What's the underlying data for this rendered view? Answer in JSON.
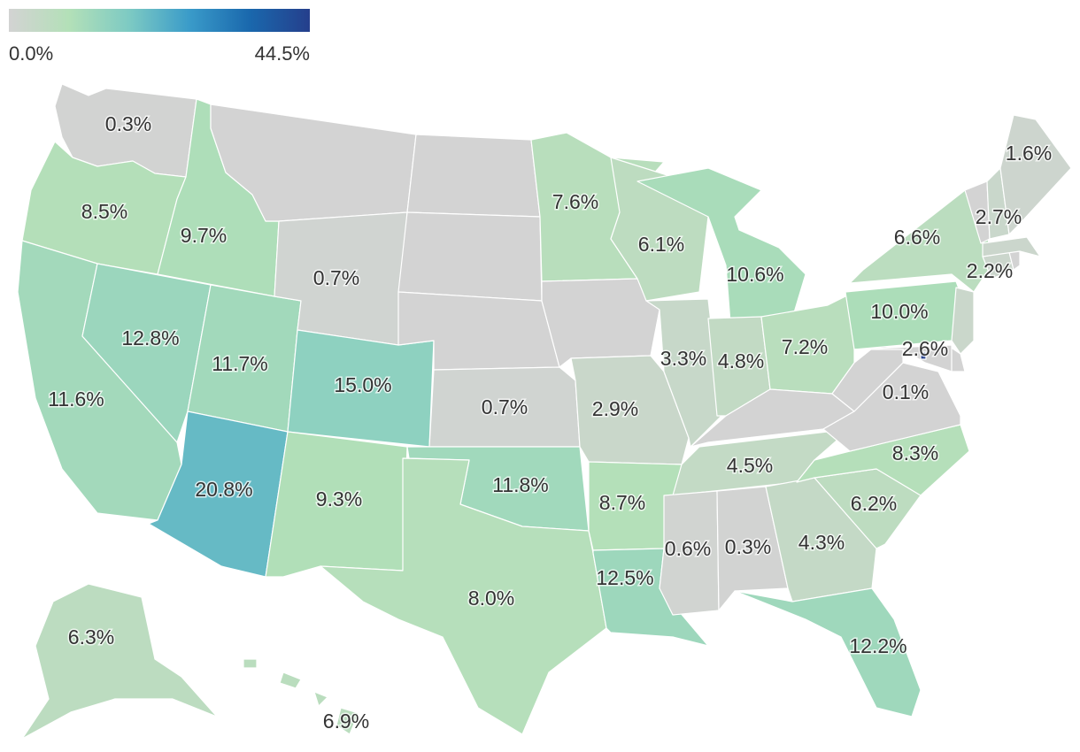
{
  "legend": {
    "min_label": "0.0%",
    "max_label": "44.5%",
    "min_value": 0.0,
    "max_value": 44.5,
    "colors": [
      "#d3d3d3",
      "#b3e0b8",
      "#7dcac3",
      "#3a9bc9",
      "#1a68ad",
      "#253f8c"
    ]
  },
  "chart_data": {
    "type": "choropleth",
    "region": "United States",
    "unit": "%",
    "values": {
      "WA": 0.3,
      "OR": 8.5,
      "CA": 11.6,
      "ID": 9.7,
      "NV": 12.8,
      "UT": 11.7,
      "AZ": 20.8,
      "MT": 0.0,
      "WY": 0.7,
      "CO": 15.0,
      "NM": 9.3,
      "ND": 0.0,
      "SD": 0.0,
      "NE": 0.0,
      "KS": 0.7,
      "OK": 11.8,
      "TX": 8.0,
      "MN": 7.6,
      "IA": 0.0,
      "MO": 2.9,
      "AR": 8.7,
      "LA": 12.5,
      "WI": 6.1,
      "IL": 3.3,
      "MI": 10.6,
      "IN": 4.8,
      "OH": 7.2,
      "KY": 0.0,
      "TN": 4.5,
      "MS": 0.6,
      "AL": 0.3,
      "GA": 4.3,
      "FL": 12.2,
      "SC": 6.2,
      "NC": 8.3,
      "VA": 0.1,
      "WV": 0.0,
      "PA": 10.0,
      "NY": 6.6,
      "NJ": 2.6,
      "DE": 0.0,
      "MD": 0.0,
      "DC": 44.5,
      "CT": 2.2,
      "RI": 0.0,
      "MA": 2.2,
      "VT": 0.0,
      "NH": 2.7,
      "ME": 1.6,
      "AK": 6.3,
      "HI": 6.9
    },
    "labels": [
      {
        "state": "WA",
        "text": "0.3%"
      },
      {
        "state": "OR",
        "text": "8.5%"
      },
      {
        "state": "CA",
        "text": "11.6%"
      },
      {
        "state": "ID",
        "text": "9.7%"
      },
      {
        "state": "NV",
        "text": "12.8%"
      },
      {
        "state": "UT",
        "text": "11.7%"
      },
      {
        "state": "AZ",
        "text": "20.8%"
      },
      {
        "state": "WY",
        "text": "0.7%"
      },
      {
        "state": "CO",
        "text": "15.0%"
      },
      {
        "state": "NM",
        "text": "9.3%"
      },
      {
        "state": "KS",
        "text": "0.7%"
      },
      {
        "state": "OK",
        "text": "11.8%"
      },
      {
        "state": "TX",
        "text": "8.0%"
      },
      {
        "state": "MN",
        "text": "7.6%"
      },
      {
        "state": "MO",
        "text": "2.9%"
      },
      {
        "state": "AR",
        "text": "8.7%"
      },
      {
        "state": "LA",
        "text": "12.5%"
      },
      {
        "state": "WI",
        "text": "6.1%"
      },
      {
        "state": "IL",
        "text": "3.3%"
      },
      {
        "state": "MI",
        "text": "10.6%"
      },
      {
        "state": "IN",
        "text": "4.8%"
      },
      {
        "state": "OH",
        "text": "7.2%"
      },
      {
        "state": "TN",
        "text": "4.5%"
      },
      {
        "state": "MS",
        "text": "0.6%"
      },
      {
        "state": "AL",
        "text": "0.3%"
      },
      {
        "state": "GA",
        "text": "4.3%"
      },
      {
        "state": "FL",
        "text": "12.2%"
      },
      {
        "state": "SC",
        "text": "6.2%"
      },
      {
        "state": "NC",
        "text": "8.3%"
      },
      {
        "state": "VA",
        "text": "0.1%"
      },
      {
        "state": "PA",
        "text": "10.0%"
      },
      {
        "state": "NY",
        "text": "6.6%"
      },
      {
        "state": "NJ",
        "text": "2.6%"
      },
      {
        "state": "CT",
        "text": "2.2%"
      },
      {
        "state": "NH",
        "text": "2.7%"
      },
      {
        "state": "ME",
        "text": "1.6%"
      },
      {
        "state": "AK",
        "text": "6.3%"
      },
      {
        "state": "HI",
        "text": "6.9%"
      }
    ]
  }
}
